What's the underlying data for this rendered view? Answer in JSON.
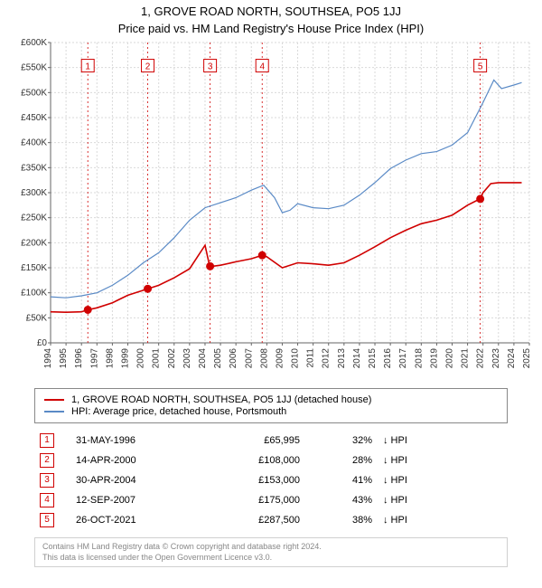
{
  "title_line1": "1, GROVE ROAD NORTH, SOUTHSEA, PO5 1JJ",
  "title_line2": "Price paid vs. HM Land Registry's House Price Index (HPI)",
  "chart": {
    "type": "line",
    "background_color": "#ffffff",
    "tick_font_size": 10,
    "xlim": [
      1994,
      2025
    ],
    "ylim": [
      0,
      600000
    ],
    "ytick_step": 50000,
    "ytick_labels": [
      "£0",
      "£50K",
      "£100K",
      "£150K",
      "£200K",
      "£250K",
      "£300K",
      "£350K",
      "£400K",
      "£450K",
      "£500K",
      "£550K",
      "£600K"
    ],
    "xtick_step": 1,
    "xtick_labels": [
      "1994",
      "1995",
      "1996",
      "1997",
      "1998",
      "1999",
      "2000",
      "2001",
      "2002",
      "2003",
      "2004",
      "2005",
      "2006",
      "2007",
      "2008",
      "2009",
      "2010",
      "2011",
      "2012",
      "2013",
      "2014",
      "2015",
      "2016",
      "2017",
      "2018",
      "2019",
      "2020",
      "2021",
      "2022",
      "2023",
      "2024",
      "2025"
    ],
    "grid_color": "#d9d9d9",
    "axis_color": "#666666",
    "series": [
      {
        "name": "price_paid",
        "color": "#d00000",
        "width": 1.6,
        "data": [
          [
            1994.0,
            62000
          ],
          [
            1995.0,
            61000
          ],
          [
            1996.0,
            62000
          ],
          [
            1996.4,
            65995
          ],
          [
            1997.0,
            70000
          ],
          [
            1998.0,
            80000
          ],
          [
            1999.0,
            95000
          ],
          [
            2000.0,
            105000
          ],
          [
            2000.3,
            108000
          ],
          [
            2001.0,
            115000
          ],
          [
            2002.0,
            130000
          ],
          [
            2003.0,
            148000
          ],
          [
            2004.0,
            195000
          ],
          [
            2004.3,
            153000
          ],
          [
            2004.5,
            153000
          ],
          [
            2005.0,
            155000
          ],
          [
            2006.0,
            162000
          ],
          [
            2007.0,
            168000
          ],
          [
            2007.7,
            175000
          ],
          [
            2008.0,
            172000
          ],
          [
            2009.0,
            150000
          ],
          [
            2010.0,
            160000
          ],
          [
            2011.0,
            158000
          ],
          [
            2012.0,
            155000
          ],
          [
            2013.0,
            160000
          ],
          [
            2014.0,
            175000
          ],
          [
            2015.0,
            192000
          ],
          [
            2016.0,
            210000
          ],
          [
            2017.0,
            225000
          ],
          [
            2018.0,
            238000
          ],
          [
            2019.0,
            245000
          ],
          [
            2020.0,
            255000
          ],
          [
            2021.0,
            275000
          ],
          [
            2021.8,
            287500
          ],
          [
            2022.0,
            300000
          ],
          [
            2022.5,
            318000
          ],
          [
            2023.0,
            320000
          ],
          [
            2024.0,
            320000
          ],
          [
            2024.5,
            320000
          ]
        ]
      },
      {
        "name": "hpi",
        "color": "#5a8ac6",
        "width": 1.2,
        "data": [
          [
            1994.0,
            92000
          ],
          [
            1995.0,
            90000
          ],
          [
            1996.0,
            94000
          ],
          [
            1997.0,
            100000
          ],
          [
            1998.0,
            115000
          ],
          [
            1999.0,
            135000
          ],
          [
            2000.0,
            160000
          ],
          [
            2001.0,
            180000
          ],
          [
            2002.0,
            210000
          ],
          [
            2003.0,
            245000
          ],
          [
            2004.0,
            270000
          ],
          [
            2005.0,
            280000
          ],
          [
            2006.0,
            290000
          ],
          [
            2007.0,
            305000
          ],
          [
            2007.8,
            315000
          ],
          [
            2008.5,
            290000
          ],
          [
            2009.0,
            260000
          ],
          [
            2009.5,
            265000
          ],
          [
            2010.0,
            278000
          ],
          [
            2011.0,
            270000
          ],
          [
            2012.0,
            268000
          ],
          [
            2013.0,
            275000
          ],
          [
            2014.0,
            295000
          ],
          [
            2015.0,
            320000
          ],
          [
            2016.0,
            348000
          ],
          [
            2017.0,
            365000
          ],
          [
            2018.0,
            378000
          ],
          [
            2019.0,
            382000
          ],
          [
            2020.0,
            395000
          ],
          [
            2021.0,
            420000
          ],
          [
            2022.0,
            480000
          ],
          [
            2022.7,
            525000
          ],
          [
            2023.2,
            508000
          ],
          [
            2024.0,
            515000
          ],
          [
            2024.5,
            520000
          ]
        ]
      }
    ],
    "sale_markers": [
      {
        "n": "1",
        "x": 1996.41,
        "y": 65995
      },
      {
        "n": "2",
        "x": 2000.29,
        "y": 108000
      },
      {
        "n": "3",
        "x": 2004.33,
        "y": 153000
      },
      {
        "n": "4",
        "x": 2007.7,
        "y": 175000
      },
      {
        "n": "5",
        "x": 2021.82,
        "y": 287500
      }
    ],
    "marker_border_color": "#d00000",
    "marker_fill_color": "#ffffff",
    "marker_line_color": "#d00000",
    "marker_label_y_top": 552000
  },
  "legend": {
    "items": [
      {
        "color": "#d00000",
        "label": "1, GROVE ROAD NORTH, SOUTHSEA, PO5 1JJ (detached house)"
      },
      {
        "color": "#5a8ac6",
        "label": "HPI: Average price, detached house, Portsmouth"
      }
    ]
  },
  "sales": [
    {
      "n": "1",
      "date": "31-MAY-1996",
      "price": "£65,995",
      "pct": "32%",
      "dir": "↓ HPI"
    },
    {
      "n": "2",
      "date": "14-APR-2000",
      "price": "£108,000",
      "pct": "28%",
      "dir": "↓ HPI"
    },
    {
      "n": "3",
      "date": "30-APR-2004",
      "price": "£153,000",
      "pct": "41%",
      "dir": "↓ HPI"
    },
    {
      "n": "4",
      "date": "12-SEP-2007",
      "price": "£175,000",
      "pct": "43%",
      "dir": "↓ HPI"
    },
    {
      "n": "5",
      "date": "26-OCT-2021",
      "price": "£287,500",
      "pct": "38%",
      "dir": "↓ HPI"
    }
  ],
  "footnote_line1": "Contains HM Land Registry data © Crown copyright and database right 2024.",
  "footnote_line2": "This data is licensed under the Open Government Licence v3.0."
}
